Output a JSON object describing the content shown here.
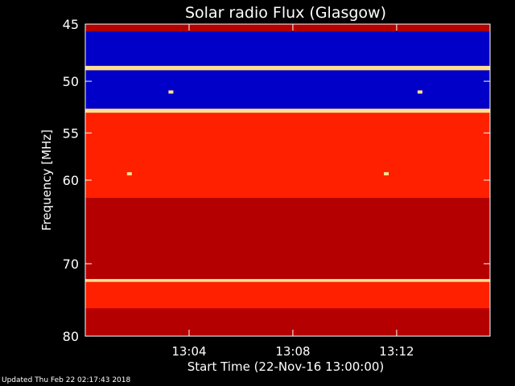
{
  "chart_data": {
    "type": "heatmap",
    "title": "Solar radio Flux (Glasgow)",
    "xlabel": "Start Time (22-Nov-16 13:00:00)",
    "ylabel": "Frequency [MHz]",
    "x_unit": "minutes after 13:00:00",
    "xlim": [
      0,
      15.6
    ],
    "ylim": [
      45,
      80
    ],
    "y_scale": "log",
    "y_inverted": true,
    "xticks": [
      {
        "value": 4,
        "label": "13:04"
      },
      {
        "value": 8,
        "label": "13:08"
      },
      {
        "value": 12,
        "label": "13:12"
      }
    ],
    "yticks": [
      {
        "value": 45,
        "label": "45"
      },
      {
        "value": 50,
        "label": "50"
      },
      {
        "value": 55,
        "label": "55"
      },
      {
        "value": 60,
        "label": "60"
      },
      {
        "value": 70,
        "label": "70"
      },
      {
        "value": 80,
        "label": "80"
      }
    ],
    "colormap": {
      "low": "#0000c8",
      "mid": "#b40000",
      "high": "#ff2000",
      "peak": "#ffe090"
    },
    "bands": [
      {
        "from_mhz": 45,
        "to_mhz": 45.6,
        "level": "mid"
      },
      {
        "from_mhz": 45.6,
        "to_mhz": 48.6,
        "level": "low"
      },
      {
        "from_mhz": 48.6,
        "to_mhz": 49.0,
        "level": "peak"
      },
      {
        "from_mhz": 49.0,
        "to_mhz": 52.6,
        "level": "low"
      },
      {
        "from_mhz": 52.6,
        "to_mhz": 53.0,
        "level": "peak"
      },
      {
        "from_mhz": 53.0,
        "to_mhz": 62.0,
        "level": "high"
      },
      {
        "from_mhz": 62.0,
        "to_mhz": 72.0,
        "level": "mid"
      },
      {
        "from_mhz": 72.0,
        "to_mhz": 72.4,
        "level": "peak"
      },
      {
        "from_mhz": 72.4,
        "to_mhz": 76.0,
        "level": "high"
      },
      {
        "from_mhz": 76.0,
        "to_mhz": 80,
        "level": "mid"
      }
    ],
    "bursts": [
      {
        "time_min": 1.7,
        "freq_mhz": 59.3
      },
      {
        "time_min": 11.6,
        "freq_mhz": 59.3
      },
      {
        "time_min": 3.3,
        "freq_mhz": 51.0
      },
      {
        "time_min": 12.9,
        "freq_mhz": 51.0
      }
    ]
  },
  "footer": {
    "updated": "Updated Thu Feb 22 02:17:43 2018"
  }
}
